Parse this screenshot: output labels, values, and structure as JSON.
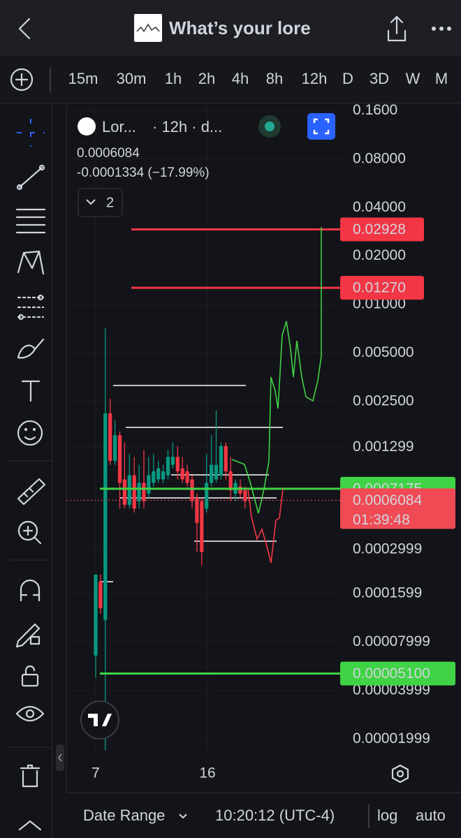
{
  "header": {
    "title": "What’s your lore"
  },
  "timeframes": {
    "items": [
      "15m",
      "30m",
      "1h",
      "2h",
      "4h",
      "8h",
      "12h",
      "D",
      "3D",
      "W",
      "M"
    ],
    "selected": 6
  },
  "chart_data": {
    "type": "candlestick",
    "symbol": "Lor...",
    "interval": "· 12h · d...",
    "last_price": "0.0006084",
    "change": "-0.0001334 (−17.99%)",
    "indicator_count": 2,
    "log": true,
    "ylim": [
      1.61e-05,
      0.174
    ],
    "yticks": [
      {
        "value": 0.16,
        "label": "0.1600"
      },
      {
        "value": 0.08,
        "label": "0.08000"
      },
      {
        "value": 0.04,
        "label": "0.04000"
      },
      {
        "value": 0.02,
        "label": "0.02000"
      },
      {
        "value": 0.01,
        "label": "0.01000"
      },
      {
        "value": 0.005,
        "label": "0.005000"
      },
      {
        "value": 0.0025,
        "label": "0.002500"
      },
      0.001299,
      0.0002999,
      0.0001599,
      7.999e-05,
      3.999e-05,
      1.999e-05
    ],
    "price_lines": [
      {
        "value": 0.02928,
        "label": "0.02928",
        "color": "#f23645",
        "text_color": "#ffffff"
      },
      {
        "value": 0.0127,
        "label": "0.01270",
        "color": "#f23645",
        "text_color": "#ffffff"
      },
      {
        "value": 0.0007175,
        "label": "0.0007175",
        "color": "#3fd345",
        "text_color": "#111111"
      },
      {
        "value": 0.0006084,
        "label": "0.0006084",
        "color": "#f04a55",
        "text_color": "#ffffff",
        "countdown": "01:39:48"
      },
      {
        "value": 5.1e-05,
        "label": "0.00005100",
        "color": "#3fd345",
        "text_color": "#111111"
      }
    ],
    "x_labels": [
      "7",
      "16"
    ],
    "ohlc": [
      [
        6.6e-05,
        0.00021,
        4.8e-05,
        0.00021
      ],
      [
        0.00019,
        0.00021,
        0.00012,
        0.00013
      ],
      [
        0.00011,
        0.0071,
        1.7e-05,
        0.00211
      ],
      [
        0.00211,
        0.0026,
        0.00101,
        0.00107
      ],
      [
        0.00107,
        0.0019,
        0.00101,
        0.00154
      ],
      [
        0.00154,
        0.00163,
        0.00054,
        0.00078
      ],
      [
        0.00082,
        0.00139,
        0.00054,
        0.00057
      ],
      [
        0.00057,
        0.00118,
        0.00054,
        0.00087
      ],
      [
        0.00087,
        0.00113,
        0.00051,
        0.00054
      ],
      [
        0.0006,
        0.00101,
        0.00054,
        0.00078
      ],
      [
        0.00078,
        0.00125,
        0.00054,
        0.0006
      ],
      [
        0.00067,
        0.00113,
        0.00063,
        0.00087
      ],
      [
        0.00078,
        0.00118,
        0.00074,
        0.00092
      ],
      [
        0.00082,
        0.00107,
        0.00078,
        0.00096
      ],
      [
        0.00082,
        0.00101,
        0.00078,
        0.00092
      ],
      [
        0.00087,
        0.00125,
        0.00082,
        0.00113
      ],
      [
        0.00101,
        0.00139,
        0.00096,
        0.00113
      ],
      [
        0.00113,
        0.00132,
        0.00082,
        0.00092
      ],
      [
        0.00096,
        0.00113,
        0.00078,
        0.00082
      ],
      [
        0.00092,
        0.00101,
        0.00074,
        0.00078
      ],
      [
        0.00082,
        0.00087,
        0.00054,
        0.0006
      ],
      [
        0.00063,
        0.00067,
        0.00029,
        0.00044
      ],
      [
        0.0006,
        0.00063,
        0.00024,
        0.00029
      ],
      [
        0.00054,
        0.00118,
        0.00051,
        0.00078
      ],
      [
        0.00078,
        0.00154,
        0.00074,
        0.00101
      ],
      [
        0.00082,
        0.0022,
        0.00078,
        0.00101
      ],
      [
        0.00087,
        0.00139,
        0.00082,
        0.00132
      ],
      [
        0.00132,
        0.00139,
        0.00082,
        0.00092
      ],
      [
        0.00092,
        0.00113,
        0.0006,
        0.0007
      ],
      [
        0.00067,
        0.00082,
        0.0006,
        0.00078
      ],
      [
        0.00074,
        0.00082,
        0.00063,
        0.00067
      ],
      [
        0.0007,
        0.00074,
        0.00054,
        0.0006
      ]
    ],
    "up_color": "#089981",
    "down_color": "#f23645",
    "grid": true
  },
  "bottom_bar": {
    "date_range": "Date Range",
    "time": "10:20:12 (UTC-4)",
    "log": "log",
    "auto": "auto"
  }
}
